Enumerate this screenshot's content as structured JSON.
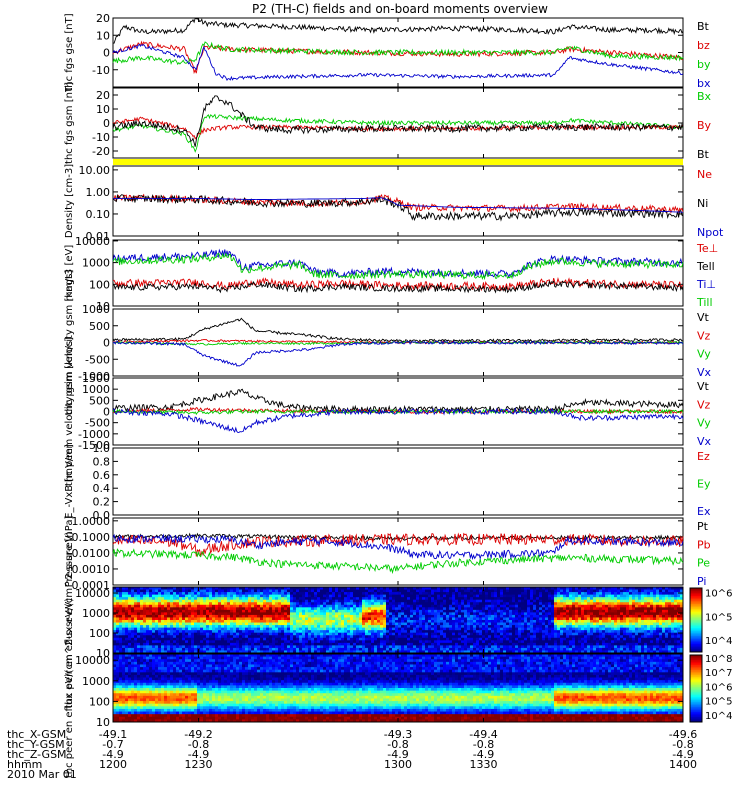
{
  "title": "P2 (TH-C) fields and on-board moments overview",
  "chart_data": [
    {
      "type": "line",
      "ylabel": "thc fgs gse [nT]",
      "ylim": [
        -20,
        20
      ],
      "yticks": [
        "20",
        "10",
        "0",
        "-10"
      ],
      "series": [
        {
          "name": "Bt",
          "color": "#000000",
          "base": 12,
          "noise": 1.5,
          "x": [
            1200,
            1204,
            1210,
            1215,
            1225,
            1229,
            1232,
            1240,
            1260,
            1290,
            1320,
            1345,
            1355,
            1360,
            1375,
            1390,
            1400
          ],
          "y": [
            5,
            15,
            12,
            12,
            13,
            20,
            17,
            16,
            15,
            13,
            14,
            13,
            12,
            15,
            13,
            13,
            12
          ]
        },
        {
          "name": "bz",
          "color": "#dd0000",
          "base": 0,
          "noise": 1.5,
          "x": [
            1200,
            1210,
            1225,
            1229,
            1232,
            1240,
            1260,
            1290,
            1320,
            1355,
            1360,
            1375,
            1400
          ],
          "y": [
            0,
            5,
            2,
            -12,
            3,
            2,
            1,
            0,
            -1,
            0,
            2,
            0,
            -3
          ]
        },
        {
          "name": "by",
          "color": "#00cc00",
          "base": 0,
          "noise": 1.5,
          "x": [
            1200,
            1210,
            1225,
            1229,
            1232,
            1240,
            1260,
            1290,
            1320,
            1355,
            1360,
            1375,
            1400
          ],
          "y": [
            -5,
            -3,
            -6,
            -4,
            5,
            2,
            1,
            0,
            0,
            0,
            3,
            -2,
            -3
          ]
        },
        {
          "name": "bx",
          "color": "#0000cc",
          "base": 0,
          "noise": 1.0,
          "x": [
            1200,
            1210,
            1225,
            1229,
            1232,
            1236,
            1240,
            1260,
            1290,
            1320,
            1355,
            1360,
            1375,
            1400
          ],
          "y": [
            0,
            4,
            -3,
            -10,
            3,
            -12,
            -15,
            -14,
            -13,
            -14,
            -13,
            -3,
            -7,
            -12
          ]
        }
      ]
    },
    {
      "type": "line",
      "ylabel": "thc fgs gsm [nT]",
      "ylim": [
        -25,
        25
      ],
      "yticks": [
        "20",
        "10",
        "0",
        "-10",
        "-20"
      ],
      "series": [
        {
          "name": "Bx",
          "color": "#00cc00",
          "base": 0,
          "noise": 1.5,
          "x": [
            1200,
            1210,
            1225,
            1229,
            1232,
            1240,
            1260,
            1290,
            1320,
            1355,
            1360,
            1400
          ],
          "y": [
            -5,
            -2,
            -8,
            -20,
            5,
            4,
            2,
            0,
            0,
            0,
            2,
            -3
          ]
        },
        {
          "name": "By",
          "color": "#dd0000",
          "base": 0,
          "noise": 1.5,
          "x": [
            1200,
            1210,
            1225,
            1229,
            1232,
            1240,
            1260,
            1290,
            1320,
            1355,
            1400
          ],
          "y": [
            0,
            3,
            -4,
            -10,
            -5,
            -3,
            -3,
            -4,
            -4,
            -3,
            -3
          ]
        },
        {
          "name": "Bt",
          "color": "#000000",
          "base": 0,
          "noise": 2.5,
          "x": [
            1200,
            1210,
            1225,
            1229,
            1232,
            1236,
            1240,
            1250,
            1260,
            1290,
            1320,
            1355,
            1400
          ],
          "y": [
            -3,
            0,
            -5,
            -15,
            10,
            18,
            15,
            -3,
            -5,
            -4,
            -4,
            -3,
            -3
          ]
        }
      ]
    },
    {
      "type": "line",
      "ylabel": "Density [cm-3]",
      "yscale": "log",
      "ylim": [
        0.01,
        15
      ],
      "yticks": [
        "10.00",
        "1.00",
        "0.10",
        "0.01"
      ],
      "series": [
        {
          "name": "Ne",
          "color": "#dd0000",
          "noise": 0.05,
          "x": [
            1200,
            1210,
            1230,
            1250,
            1270,
            1287,
            1294,
            1305,
            1340,
            1360,
            1400
          ],
          "y": [
            0.5,
            0.55,
            0.45,
            0.35,
            0.3,
            0.35,
            0.55,
            0.2,
            0.18,
            0.22,
            0.15
          ]
        },
        {
          "name": "Ni",
          "color": "#000000",
          "noise": 0.06,
          "x": [
            1200,
            1210,
            1230,
            1250,
            1270,
            1287,
            1294,
            1305,
            1340,
            1360,
            1400
          ],
          "y": [
            0.5,
            0.5,
            0.45,
            0.33,
            0.3,
            0.35,
            0.45,
            0.08,
            0.08,
            0.12,
            0.1
          ]
        },
        {
          "name": "Npot",
          "color": "#0000cc",
          "noise": 0.0,
          "x": [
            1200,
            1230,
            1250,
            1287,
            1294,
            1300,
            1320,
            1360,
            1400
          ],
          "y": [
            0.5,
            0.5,
            0.45,
            0.5,
            0.55,
            0.25,
            0.2,
            0.18,
            0.12
          ]
        }
      ]
    },
    {
      "type": "line",
      "ylabel": "magt3 [eV]",
      "yscale": "log",
      "ylim": [
        10,
        11000
      ],
      "yticks": [
        "10000",
        "1000",
        "100",
        "10"
      ],
      "series": [
        {
          "name": "Te⊥",
          "color": "#dd0000",
          "noise": 0.06,
          "x": [
            1200,
            1230,
            1240,
            1250,
            1265,
            1280,
            1295,
            1340,
            1355,
            1370,
            1400
          ],
          "y": [
            110,
            120,
            80,
            130,
            90,
            110,
            90,
            80,
            130,
            110,
            90
          ]
        },
        {
          "name": "Tell",
          "color": "#000000",
          "noise": 0.05,
          "x": [
            1200,
            1230,
            1240,
            1250,
            1265,
            1280,
            1295,
            1340,
            1355,
            1370,
            1400
          ],
          "y": [
            70,
            80,
            55,
            100,
            60,
            80,
            65,
            60,
            100,
            90,
            70
          ]
        },
        {
          "name": "Ti⊥",
          "color": "#0000cc",
          "noise": 0.06,
          "x": [
            1200,
            1215,
            1230,
            1240,
            1245,
            1265,
            1270,
            1280,
            1295,
            1340,
            1355,
            1370,
            1400
          ],
          "y": [
            1500,
            1800,
            2000,
            3000,
            600,
            1000,
            400,
            300,
            400,
            300,
            1500,
            1200,
            1000
          ]
        },
        {
          "name": "Till",
          "color": "#00cc00",
          "noise": 0.06,
          "x": [
            1200,
            1215,
            1230,
            1240,
            1245,
            1265,
            1270,
            1280,
            1295,
            1340,
            1355,
            1370,
            1400
          ],
          "y": [
            1100,
            1300,
            1500,
            2200,
            450,
            800,
            300,
            250,
            300,
            250,
            1200,
            900,
            800
          ]
        }
      ]
    },
    {
      "type": "line",
      "ylabel": "thc peim velocity gsm [km/s]",
      "ylim": [
        -1000,
        1000
      ],
      "yticks": [
        "1000",
        "500",
        "0",
        "-500",
        "-1000"
      ],
      "series": [
        {
          "name": "Vt",
          "color": "#000000",
          "noise": 40,
          "x": [
            1200,
            1225,
            1232,
            1245,
            1250,
            1270,
            1280,
            1300,
            1355,
            1400
          ],
          "y": [
            80,
            100,
            400,
            700,
            350,
            200,
            100,
            50,
            60,
            80
          ]
        },
        {
          "name": "Vz",
          "color": "#dd0000",
          "noise": 30,
          "x": [
            1200,
            1232,
            1250,
            1270,
            1300,
            1400
          ],
          "y": [
            20,
            60,
            40,
            20,
            0,
            0
          ]
        },
        {
          "name": "Vy",
          "color": "#00cc00",
          "noise": 30,
          "x": [
            1200,
            1232,
            1250,
            1270,
            1300,
            1400
          ],
          "y": [
            0,
            -50,
            -20,
            -30,
            0,
            0
          ]
        },
        {
          "name": "Vx",
          "color": "#0000cc",
          "noise": 40,
          "x": [
            1200,
            1225,
            1232,
            1245,
            1250,
            1270,
            1280,
            1300,
            1400
          ],
          "y": [
            0,
            -50,
            -400,
            -700,
            -300,
            -200,
            -50,
            0,
            -20
          ]
        }
      ]
    },
    {
      "type": "line",
      "ylabel": "thc peem velocity gsm [km/s]",
      "ylim": [
        -1500,
        1500
      ],
      "yticks": [
        "1500",
        "1000",
        "500",
        "0",
        "-500",
        "-1000",
        "-1500"
      ],
      "series": [
        {
          "name": "Vt",
          "color": "#000000",
          "noise": 140,
          "x": [
            1200,
            1220,
            1230,
            1245,
            1250,
            1262,
            1280,
            1355,
            1365,
            1400
          ],
          "y": [
            150,
            200,
            500,
            900,
            600,
            200,
            100,
            100,
            400,
            300
          ]
        },
        {
          "name": "Vz",
          "color": "#dd0000",
          "noise": 80,
          "x": [
            1200,
            1230,
            1250,
            1280,
            1400
          ],
          "y": [
            0,
            100,
            50,
            0,
            0
          ]
        },
        {
          "name": "Vy",
          "color": "#00cc00",
          "noise": 80,
          "x": [
            1200,
            1230,
            1250,
            1280,
            1400
          ],
          "y": [
            0,
            -50,
            0,
            0,
            0
          ]
        },
        {
          "name": "Vx",
          "color": "#0000cc",
          "noise": 120,
          "x": [
            1200,
            1220,
            1230,
            1245,
            1250,
            1262,
            1280,
            1355,
            1365,
            1400
          ],
          "y": [
            0,
            -100,
            -400,
            -900,
            -500,
            -200,
            0,
            0,
            -300,
            -200
          ]
        }
      ]
    },
    {
      "type": "line",
      "ylabel": "E_-VxB [mV/m]",
      "ylim": [
        0,
        1
      ],
      "yticks": [
        "1.0",
        "0.8",
        "0.6",
        "0.4",
        "0.2",
        "0.0"
      ],
      "legend_only": true,
      "series": [
        {
          "name": "Ez",
          "color": "#dd0000",
          "x": [],
          "y": []
        },
        {
          "name": "Ey",
          "color": "#00cc00",
          "x": [],
          "y": []
        },
        {
          "name": "Ex",
          "color": "#0000cc",
          "x": [],
          "y": []
        }
      ]
    },
    {
      "type": "line",
      "ylabel": "Pressure [nPa]",
      "yscale": "log",
      "ylim": [
        0.0001,
        1.5
      ],
      "yticks": [
        "1.0000",
        "0.1000",
        "0.0100",
        "0.0010",
        "0.0001"
      ],
      "series": [
        {
          "name": "Pt",
          "color": "#000000",
          "noise": 0.04,
          "x": [
            1200,
            1230,
            1260,
            1300,
            1355,
            1400
          ],
          "y": [
            0.1,
            0.12,
            0.1,
            0.08,
            0.09,
            0.09
          ]
        },
        {
          "name": "Pb",
          "color": "#dd0000",
          "noise": 0.12,
          "x": [
            1200,
            1220,
            1230,
            1250,
            1300,
            1355,
            1400
          ],
          "y": [
            0.06,
            0.05,
            0.01,
            0.05,
            0.07,
            0.07,
            0.05
          ]
        },
        {
          "name": "Pe",
          "color": "#00cc00",
          "noise": 0.08,
          "x": [
            1200,
            1240,
            1250,
            1260,
            1300,
            1360,
            1400
          ],
          "y": [
            0.01,
            0.006,
            0.003,
            0.002,
            0.001,
            0.005,
            0.003
          ]
        },
        {
          "name": "Pi",
          "color": "#0000cc",
          "noise": 0.08,
          "x": [
            1200,
            1240,
            1250,
            1270,
            1305,
            1320,
            1355,
            1360,
            1400
          ],
          "y": [
            0.08,
            0.07,
            0.03,
            0.06,
            0.008,
            0.007,
            0.01,
            0.06,
            0.04
          ]
        }
      ]
    },
    {
      "type": "heatmap",
      "ylabel": "thc peir en eflux eV/(cm^2-s-sr-eV)",
      "yscale": "log",
      "ylim": [
        10,
        20000
      ],
      "yticks": [
        "10000",
        "1000",
        "100",
        "10"
      ],
      "colorbar_ticks": [
        "10^6",
        "10^5",
        "10^4"
      ],
      "colorbar_range": [
        3.5,
        6.2
      ]
    },
    {
      "type": "heatmap",
      "ylabel": "thc peer en eflux eV/(cm^2-s-sr-eV)",
      "yscale": "log",
      "ylim": [
        10,
        20000
      ],
      "yticks": [
        "10000",
        "1000",
        "100",
        "10"
      ],
      "colorbar_ticks": [
        "10^8",
        "10^7",
        "10^6",
        "10^5",
        "10^4"
      ],
      "colorbar_range": [
        3.5,
        8.2
      ]
    }
  ],
  "xaxis": {
    "range": [
      1200,
      1400
    ],
    "ticks": [
      1200,
      1230,
      1300,
      1330,
      1400
    ],
    "rows": [
      {
        "label": "thc_X-GSM",
        "values": [
          "-49.1",
          "-49.2",
          "-49.3",
          "-49.4",
          "-49.6"
        ]
      },
      {
        "label": "thc_Y-GSM",
        "values": [
          "-0.7",
          "-0.8",
          "-0.8",
          "-0.8",
          "-0.8"
        ]
      },
      {
        "label": "thc_Z-GSM",
        "values": [
          "-4.9",
          "-4.9",
          "-4.9",
          "-4.9",
          "-4.9"
        ]
      },
      {
        "label": "hhmm",
        "values": [
          "1200",
          "1230",
          "1300",
          "1330",
          "1400"
        ]
      }
    ],
    "date": "2010 Mar 01"
  },
  "colors": {
    "status_bar": "#ffff00"
  }
}
